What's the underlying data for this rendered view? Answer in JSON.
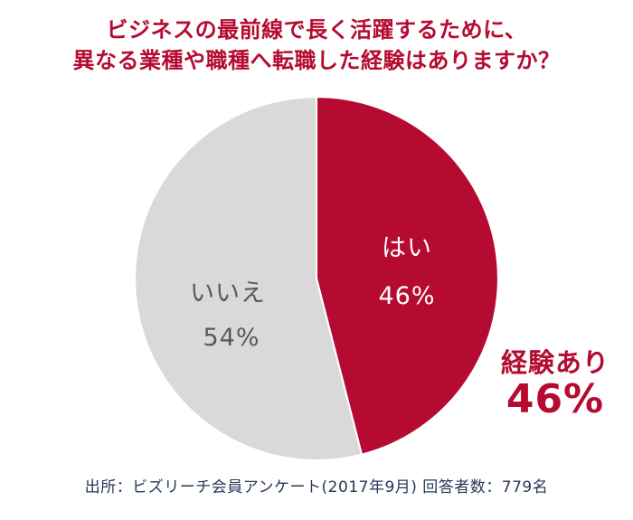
{
  "title": {
    "line1": "ビジネスの最前線で長く活躍するために、",
    "line2": "異なる業種や職種へ転職した経験はありますか？"
  },
  "chart_data": {
    "type": "pie",
    "title": "ビジネスの最前線で長く活躍するために、異なる業種や職種へ転職した経験はありますか？",
    "categories": [
      "はい",
      "いいえ"
    ],
    "values": [
      46,
      54
    ],
    "slice_colors": [
      "#b50b31",
      "#d9d9d9"
    ],
    "start_angle_deg": -90,
    "direction": "clockwise",
    "labels": {
      "yes_name": "はい",
      "yes_pct": "46%",
      "no_name": "いいえ",
      "no_pct": "54%"
    },
    "legend_position": "none",
    "annotations": [
      "経験あり 46%"
    ]
  },
  "annotation": {
    "line1": "経験あり",
    "line2": "46%"
  },
  "footer": {
    "text": "出所：ビズリーチ会員アンケート(2017年9月) 回答者数：779名"
  },
  "colors": {
    "accent": "#b50b31",
    "gray_slice": "#d9d9d9",
    "gray_text": "#595959",
    "white_text": "#ffffff",
    "footer_text": "#253855",
    "slice_border": "#ffffff"
  }
}
